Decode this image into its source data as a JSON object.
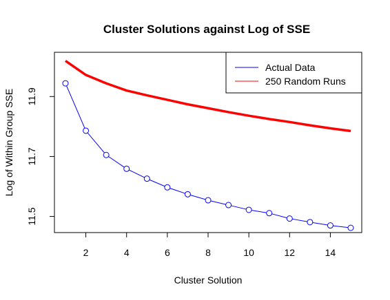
{
  "chart_data": {
    "type": "line",
    "title": "Cluster Solutions against Log of SSE",
    "xlabel": "Cluster Solution",
    "ylabel": "Log of Within Group SSE",
    "xlim": [
      1,
      15
    ],
    "ylim": [
      11.46,
      12.02
    ],
    "x_ticks": [
      2,
      4,
      6,
      8,
      10,
      12,
      14
    ],
    "y_ticks": [
      11.5,
      11.7,
      11.9
    ],
    "x": [
      1,
      2,
      3,
      4,
      5,
      6,
      7,
      8,
      9,
      10,
      11,
      12,
      13,
      14,
      15
    ],
    "legend_position": "top-right",
    "grid": false,
    "series": [
      {
        "name": "Actual Data",
        "color": "#0000ff",
        "marker": "open-circle",
        "values": [
          11.944,
          11.786,
          11.705,
          11.659,
          11.626,
          11.597,
          11.574,
          11.554,
          11.538,
          11.522,
          11.511,
          11.493,
          11.481,
          11.47,
          11.462
        ]
      },
      {
        "name": "250 Random Runs",
        "color": "#ff0000",
        "marker": "none",
        "values": [
          12.019,
          11.972,
          11.944,
          11.92,
          11.904,
          11.889,
          11.874,
          11.861,
          11.848,
          11.836,
          11.825,
          11.815,
          11.804,
          11.794,
          11.785
        ]
      }
    ]
  }
}
